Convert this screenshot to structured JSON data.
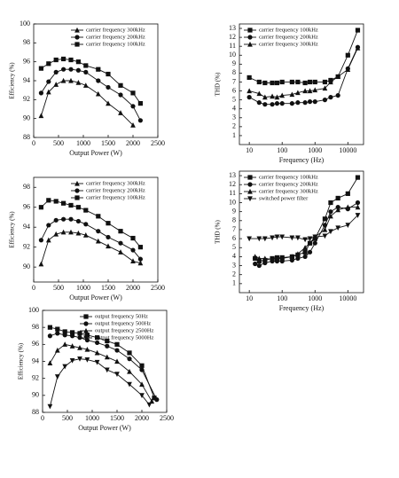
{
  "chart_data": [
    {
      "type": "line",
      "x_label": "Output Power (W)",
      "y_label": "Efficiency (%)",
      "xlim": [
        0,
        2500
      ],
      "xticks": [
        0,
        500,
        1000,
        1500,
        2000,
        2500
      ],
      "ylim": [
        88,
        100
      ],
      "yticks": [
        88,
        90,
        92,
        94,
        96,
        98,
        100
      ],
      "legend": "upper right",
      "series": [
        {
          "name": "carrier frequency 300kHz",
          "color": "#111",
          "marker": "triangle",
          "x": [
            150,
            300,
            450,
            600,
            750,
            900,
            1050,
            1300,
            1500,
            1750,
            2000
          ],
          "values": [
            90.3,
            92.8,
            93.6,
            94.0,
            94.0,
            93.8,
            93.5,
            92.6,
            91.6,
            90.6,
            89.3
          ]
        },
        {
          "name": "carrier frequency 200kHz",
          "color": "#111",
          "marker": "circle",
          "x": [
            150,
            300,
            450,
            600,
            750,
            900,
            1050,
            1300,
            1500,
            1750,
            2000,
            2150
          ],
          "values": [
            92.7,
            93.9,
            94.9,
            95.2,
            95.2,
            95.1,
            94.9,
            94.0,
            93.3,
            92.5,
            91.3,
            89.8
          ]
        },
        {
          "name": "carrier frequency 100kHz",
          "color": "#111",
          "marker": "square",
          "x": [
            150,
            300,
            450,
            600,
            750,
            900,
            1050,
            1300,
            1500,
            1750,
            2000,
            2150
          ],
          "values": [
            95.3,
            95.8,
            96.2,
            96.3,
            96.2,
            96.0,
            95.6,
            95.2,
            94.7,
            93.5,
            92.7,
            91.6
          ]
        }
      ]
    },
    {
      "type": "line",
      "x_label": "Frequency (Hz)",
      "y_label": "THD (%)",
      "xlog": true,
      "xlim": [
        5,
        30000
      ],
      "xticks": [
        10,
        100,
        1000,
        10000
      ],
      "ylim": [
        0,
        13.5
      ],
      "yticks": [
        1,
        2,
        3,
        4,
        5,
        6,
        7,
        8,
        9,
        10,
        11,
        12,
        13
      ],
      "legend": "upper left",
      "series": [
        {
          "name": "carrier frequency 100kHz",
          "color": "#111",
          "marker": "square",
          "x": [
            10,
            20,
            30,
            50,
            70,
            100,
            200,
            300,
            500,
            700,
            1000,
            2000,
            3000,
            5000,
            10000,
            20000
          ],
          "values": [
            7.5,
            7.0,
            6.9,
            6.9,
            6.9,
            7.0,
            7.0,
            7.0,
            6.9,
            7.0,
            7.0,
            7.0,
            7.2,
            7.6,
            10,
            12.8
          ]
        },
        {
          "name": "carrier frequency 200kHz",
          "color": "#111",
          "marker": "circle",
          "x": [
            10,
            20,
            30,
            50,
            70,
            100,
            200,
            300,
            500,
            700,
            1000,
            2000,
            3000,
            5000,
            10000,
            20000
          ],
          "values": [
            5.3,
            4.7,
            4.5,
            4.5,
            4.6,
            4.6,
            4.6,
            4.7,
            4.7,
            4.8,
            4.8,
            5.0,
            5.3,
            5.5,
            8.5,
            10.9
          ]
        },
        {
          "name": "carrier frequency 300kHz",
          "color": "#111",
          "marker": "triangle",
          "x": [
            10,
            20,
            30,
            50,
            70,
            100,
            200,
            300,
            500,
            700,
            1000,
            2000,
            3000,
            5000,
            10000,
            20000
          ],
          "values": [
            6.0,
            5.7,
            5.3,
            5.4,
            5.3,
            5.5,
            5.6,
            5.8,
            6.0,
            6.0,
            6.1,
            6.3,
            7.0,
            7.6,
            8.4,
            10.8
          ]
        }
      ]
    },
    {
      "type": "line",
      "x_label": "Output Power (W)",
      "y_label": "Efficiency (%)",
      "xlim": [
        0,
        2500
      ],
      "xticks": [
        0,
        500,
        1000,
        1500,
        2000,
        2500
      ],
      "ylim": [
        88.5,
        99
      ],
      "yticks": [
        90,
        92,
        94,
        96,
        98
      ],
      "legend": "upper right",
      "series": [
        {
          "name": "carrier frequency 300kHz",
          "color": "#111",
          "marker": "triangle",
          "x": [
            150,
            300,
            450,
            600,
            750,
            900,
            1050,
            1300,
            1500,
            1750,
            2000,
            2150
          ],
          "values": [
            90.3,
            92.7,
            93.3,
            93.5,
            93.5,
            93.4,
            93.2,
            92.6,
            92.1,
            91.5,
            90.6,
            90.4
          ]
        },
        {
          "name": "carrier frequency 200kHz",
          "color": "#111",
          "marker": "circle",
          "x": [
            150,
            300,
            450,
            600,
            750,
            900,
            1050,
            1300,
            1500,
            1750,
            2000,
            2150
          ],
          "values": [
            92.7,
            94.2,
            94.7,
            94.8,
            94.8,
            94.6,
            94.3,
            93.6,
            93.0,
            92.4,
            91.7,
            90.8
          ]
        },
        {
          "name": "carrier frequency 100kHz",
          "color": "#111",
          "marker": "square",
          "x": [
            150,
            300,
            450,
            600,
            750,
            900,
            1050,
            1300,
            1500,
            1750,
            2000,
            2150
          ],
          "values": [
            96.0,
            96.7,
            96.6,
            96.4,
            96.2,
            96.0,
            95.7,
            95.1,
            94.4,
            93.6,
            92.9,
            92.0
          ]
        }
      ]
    },
    {
      "type": "line",
      "x_label": "Frequency (Hz)",
      "y_label": "THD (%)",
      "xlog": true,
      "xlim": [
        5,
        30000
      ],
      "xticks": [
        10,
        100,
        1000,
        10000
      ],
      "ylim": [
        0,
        13.5
      ],
      "yticks": [
        1,
        2,
        3,
        4,
        5,
        6,
        7,
        8,
        9,
        10,
        11,
        12,
        13
      ],
      "legend": "upper left",
      "series": [
        {
          "name": "carrier frequency 100kHz",
          "color": "#111",
          "marker": "square",
          "x": [
            15,
            20,
            30,
            50,
            70,
            100,
            200,
            300,
            500,
            700,
            1000,
            2000,
            3000,
            5000,
            10000,
            20000
          ],
          "values": [
            3.8,
            3.5,
            3.6,
            3.8,
            3.9,
            3.9,
            4.0,
            4.2,
            4.5,
            5.5,
            6.0,
            8.2,
            10.0,
            10.5,
            11.0,
            12.8
          ]
        },
        {
          "name": "carrier frequency 200kHz",
          "color": "#111",
          "marker": "circle",
          "x": [
            15,
            20,
            30,
            50,
            70,
            100,
            200,
            300,
            500,
            700,
            1000,
            2000,
            3000,
            5000,
            10000,
            20000
          ],
          "values": [
            3.2,
            3.0,
            3.3,
            3.5,
            3.5,
            3.5,
            3.6,
            3.8,
            4.0,
            4.5,
            5.5,
            7.5,
            9.0,
            9.5,
            9.3,
            10.0
          ]
        },
        {
          "name": "carrier frequency 300kHz",
          "color": "#111",
          "marker": "triangle",
          "x": [
            15,
            20,
            30,
            50,
            70,
            100,
            200,
            300,
            500,
            700,
            1000,
            2000,
            3000,
            5000,
            10000,
            20000
          ],
          "values": [
            4.0,
            3.8,
            3.8,
            3.7,
            3.8,
            3.8,
            4.0,
            4.3,
            5.0,
            5.5,
            6.2,
            7.0,
            8.5,
            9.2,
            9.5,
            9.5
          ]
        },
        {
          "name": "switched power filter",
          "color": "#111",
          "marker": "triangle-down",
          "x": [
            10,
            20,
            30,
            50,
            70,
            100,
            200,
            300,
            500,
            700,
            1000,
            2000,
            3000,
            5000,
            10000,
            20000
          ],
          "values": [
            6.0,
            6.0,
            6.0,
            6.1,
            6.2,
            6.2,
            6.1,
            6.1,
            5.9,
            6.0,
            6.2,
            6.3,
            6.8,
            7.2,
            7.5,
            8.6
          ]
        }
      ]
    },
    {
      "type": "line",
      "x_label": "Output Power (W)",
      "y_label": "Efficiency (%)",
      "xlim": [
        0,
        2500
      ],
      "xticks": [
        0,
        500,
        1000,
        1500,
        2000,
        2500
      ],
      "ylim": [
        88,
        100
      ],
      "yticks": [
        88,
        90,
        92,
        94,
        96,
        98,
        100
      ],
      "legend": "upper right",
      "series": [
        {
          "name": "output frequency 50Hz",
          "color": "#111",
          "marker": "square",
          "x": [
            150,
            300,
            450,
            600,
            750,
            900,
            1100,
            1300,
            1500,
            1750,
            2000,
            2250
          ],
          "values": [
            98.0,
            97.8,
            97.5,
            97.4,
            97.3,
            97.1,
            96.8,
            96.4,
            96.0,
            95.0,
            93.5,
            89.7
          ]
        },
        {
          "name": "output frequency 500Hz",
          "color": "#111",
          "marker": "circle",
          "x": [
            150,
            300,
            450,
            600,
            750,
            900,
            1100,
            1300,
            1500,
            1750,
            2000,
            2300
          ],
          "values": [
            97.0,
            97.3,
            97.1,
            97.0,
            96.8,
            96.5,
            96.2,
            95.8,
            95.3,
            94.3,
            93.0,
            89.5
          ]
        },
        {
          "name": "output frequency 2500Hz",
          "color": "#111",
          "marker": "triangle",
          "x": [
            150,
            300,
            450,
            600,
            750,
            900,
            1100,
            1300,
            1500,
            1750,
            2000,
            2200
          ],
          "values": [
            93.8,
            95.3,
            96.0,
            95.8,
            95.6,
            95.4,
            95.0,
            94.5,
            94.0,
            92.8,
            91.3,
            89.3
          ]
        },
        {
          "name": "output frequency 5000Hz",
          "color": "#111",
          "marker": "triangle-down",
          "x": [
            150,
            300,
            450,
            600,
            750,
            900,
            1100,
            1300,
            1500,
            1750,
            2000,
            2150
          ],
          "values": [
            88.7,
            92.2,
            93.4,
            94.1,
            94.3,
            94.2,
            93.9,
            93.0,
            92.5,
            91.3,
            90.0,
            88.9
          ]
        }
      ]
    }
  ]
}
